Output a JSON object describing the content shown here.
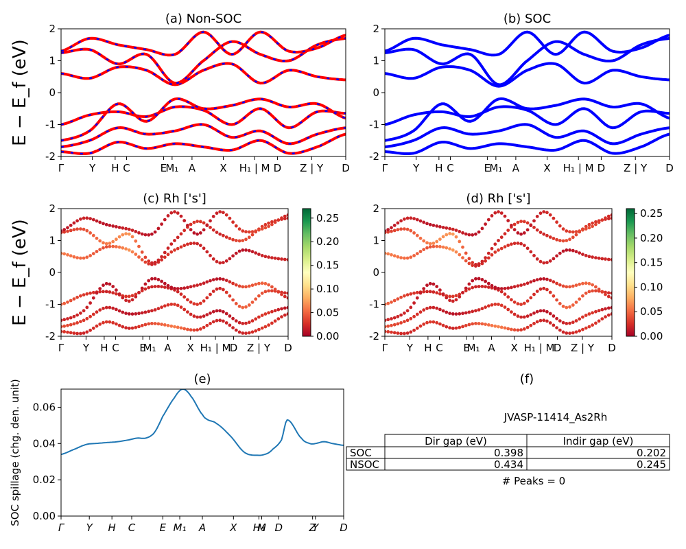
{
  "kpath": {
    "labels": [
      "Γ",
      "Y",
      "H",
      "C",
      "E",
      "M₁",
      "A",
      "X",
      "H₁ | M",
      "D",
      "Z | Y",
      "D"
    ],
    "spillage_labels": [
      "Γ",
      "Y",
      "H",
      "C",
      "E",
      "M₁",
      "A",
      "X",
      "H₁",
      "M",
      "D",
      "Z",
      "Y",
      "D"
    ]
  },
  "colors": {
    "nonsoc_solid": "#ff0000",
    "nonsoc_dash": "#0000ff",
    "soc": "#0000ff",
    "spillage": "#1f77b4",
    "colormap": [
      "#a50026",
      "#d73027",
      "#f46d43",
      "#fdae61",
      "#fee08b",
      "#ffffbf",
      "#d9ef8b",
      "#a6d96a",
      "#66bd63",
      "#1a9850",
      "#006837"
    ]
  },
  "chart_data": [
    {
      "panel": "a",
      "type": "line",
      "title": "(a) Non-SOC",
      "ylabel": "E − E_f (eV)",
      "ylim": [
        -2,
        2
      ],
      "yticks": [
        -2,
        -1,
        0,
        1,
        2
      ],
      "style": "red solid overlaid with blue dashes",
      "bands": [
        {
          "x": [
            0,
            0.1,
            0.2,
            0.3,
            0.4,
            0.5,
            0.6,
            0.7,
            0.8,
            0.9,
            1
          ],
          "y": [
            -1.0,
            -0.7,
            -0.6,
            -0.75,
            -0.45,
            -0.55,
            -1.0,
            -0.5,
            -1.1,
            -0.6,
            -0.65
          ]
        },
        {
          "x": [
            0,
            0.1,
            0.2,
            0.3,
            0.4,
            0.5,
            0.6,
            0.7,
            0.8,
            0.9,
            1
          ],
          "y": [
            -1.5,
            -1.2,
            -0.35,
            -0.9,
            -0.2,
            -0.5,
            -0.4,
            -0.2,
            -0.45,
            -0.35,
            -0.8
          ]
        },
        {
          "x": [
            0,
            0.1,
            0.2,
            0.3,
            0.4,
            0.5,
            0.6,
            0.7,
            0.8,
            0.9,
            1
          ],
          "y": [
            -1.7,
            -1.5,
            -1.1,
            -1.3,
            -1.2,
            -1.0,
            -1.4,
            -1.2,
            -1.6,
            -1.3,
            -1.1
          ]
        },
        {
          "x": [
            0,
            0.1,
            0.2,
            0.3,
            0.4,
            0.5,
            0.6,
            0.7,
            0.8,
            0.9,
            1
          ],
          "y": [
            -1.85,
            -1.9,
            -1.55,
            -1.75,
            -1.6,
            -1.7,
            -1.8,
            -1.5,
            -1.9,
            -1.7,
            -1.3
          ]
        },
        {
          "x": [
            0,
            0.1,
            0.2,
            0.3,
            0.4,
            0.5,
            0.6,
            0.7,
            0.8,
            0.9,
            1
          ],
          "y": [
            0.6,
            0.45,
            0.8,
            0.7,
            0.25,
            0.7,
            0.9,
            0.3,
            0.7,
            0.5,
            0.4
          ]
        },
        {
          "x": [
            0,
            0.1,
            0.2,
            0.3,
            0.4,
            0.5,
            0.6,
            0.7,
            0.8,
            0.9,
            1
          ],
          "y": [
            1.25,
            1.35,
            0.9,
            1.2,
            0.3,
            1.0,
            1.6,
            1.2,
            1.0,
            1.5,
            1.7
          ]
        },
        {
          "x": [
            0,
            0.1,
            0.2,
            0.3,
            0.4,
            0.5,
            0.6,
            0.7,
            0.8,
            0.9,
            1
          ],
          "y": [
            1.3,
            1.7,
            1.5,
            1.35,
            1.2,
            1.9,
            1.2,
            1.9,
            1.3,
            1.4,
            1.8
          ]
        }
      ]
    },
    {
      "panel": "b",
      "type": "line",
      "title": "(b) SOC",
      "ylim": [
        -2,
        2
      ],
      "yticks": [
        -2,
        -1,
        0,
        1,
        2
      ],
      "style": "blue solid",
      "bands": [
        {
          "x": [
            0,
            0.1,
            0.2,
            0.3,
            0.4,
            0.5,
            0.6,
            0.7,
            0.8,
            0.9,
            1
          ],
          "y": [
            -1.0,
            -0.7,
            -0.6,
            -0.75,
            -0.45,
            -0.55,
            -1.0,
            -0.5,
            -1.1,
            -0.6,
            -0.65
          ]
        },
        {
          "x": [
            0,
            0.1,
            0.2,
            0.3,
            0.4,
            0.5,
            0.6,
            0.7,
            0.8,
            0.9,
            1
          ],
          "y": [
            -1.5,
            -1.2,
            -0.35,
            -0.9,
            -0.2,
            -0.5,
            -0.4,
            -0.2,
            -0.45,
            -0.35,
            -0.8
          ]
        },
        {
          "x": [
            0,
            0.1,
            0.2,
            0.3,
            0.4,
            0.5,
            0.6,
            0.7,
            0.8,
            0.9,
            1
          ],
          "y": [
            -1.7,
            -1.5,
            -1.1,
            -1.3,
            -1.2,
            -1.0,
            -1.4,
            -1.2,
            -1.6,
            -1.3,
            -1.1
          ]
        },
        {
          "x": [
            0,
            0.1,
            0.2,
            0.3,
            0.4,
            0.5,
            0.6,
            0.7,
            0.8,
            0.9,
            1
          ],
          "y": [
            -1.85,
            -1.9,
            -1.55,
            -1.75,
            -1.6,
            -1.7,
            -1.8,
            -1.5,
            -1.9,
            -1.7,
            -1.3
          ]
        },
        {
          "x": [
            0,
            0.1,
            0.2,
            0.3,
            0.4,
            0.5,
            0.6,
            0.7,
            0.8,
            0.9,
            1
          ],
          "y": [
            0.6,
            0.45,
            0.8,
            0.7,
            0.2,
            0.7,
            0.9,
            0.3,
            0.7,
            0.5,
            0.4
          ]
        },
        {
          "x": [
            0,
            0.1,
            0.2,
            0.3,
            0.4,
            0.5,
            0.6,
            0.7,
            0.8,
            0.9,
            1
          ],
          "y": [
            1.25,
            1.35,
            0.9,
            1.2,
            0.25,
            1.0,
            1.6,
            1.2,
            1.0,
            1.5,
            1.7
          ]
        },
        {
          "x": [
            0,
            0.1,
            0.2,
            0.3,
            0.4,
            0.5,
            0.6,
            0.7,
            0.8,
            0.9,
            1
          ],
          "y": [
            1.3,
            1.7,
            1.5,
            1.35,
            1.2,
            1.9,
            1.2,
            1.9,
            1.3,
            1.4,
            1.8
          ]
        }
      ]
    },
    {
      "panel": "c",
      "type": "scatter",
      "title": "(c)  Rh ['s']",
      "ylabel": "E − E_f (eV)",
      "ylim": [
        -2,
        2
      ],
      "yticks": [
        -2,
        -1,
        0,
        1,
        2
      ],
      "colorbar": {
        "min": 0.0,
        "max": 0.27,
        "ticks": [
          "0.00",
          "0.05",
          "0.10",
          "0.15",
          "0.20",
          "0.25"
        ]
      },
      "bands": [
        {
          "x": [
            0,
            0.1,
            0.2,
            0.3,
            0.4,
            0.5,
            0.6,
            0.7,
            0.8,
            0.9,
            1
          ],
          "y": [
            -1.0,
            -0.7,
            -0.6,
            -0.75,
            -0.45,
            -0.55,
            -1.0,
            -0.5,
            -1.1,
            -0.6,
            -0.65
          ],
          "w": [
            0.05,
            0.03,
            0.02,
            0.03,
            0.02,
            0.02,
            0.03,
            0.02,
            0.05,
            0.04,
            0.02
          ]
        },
        {
          "x": [
            0,
            0.1,
            0.2,
            0.3,
            0.4,
            0.5,
            0.6,
            0.7,
            0.8,
            0.9,
            1
          ],
          "y": [
            -1.5,
            -1.2,
            -0.35,
            -0.9,
            -0.2,
            -0.5,
            -0.4,
            -0.2,
            -0.45,
            -0.35,
            -0.8
          ],
          "w": [
            0.02,
            0.02,
            0.01,
            0.02,
            0.01,
            0.01,
            0.02,
            0.01,
            0.04,
            0.05,
            0.02
          ]
        },
        {
          "x": [
            0,
            0.1,
            0.2,
            0.3,
            0.4,
            0.5,
            0.6,
            0.7,
            0.8,
            0.9,
            1
          ],
          "y": [
            -1.7,
            -1.5,
            -1.1,
            -1.3,
            -1.2,
            -1.0,
            -1.4,
            -1.2,
            -1.6,
            -1.3,
            -1.1
          ],
          "w": [
            0.04,
            0.03,
            0.02,
            0.01,
            0.02,
            0.03,
            0.02,
            0.01,
            0.02,
            0.03,
            0.01
          ]
        },
        {
          "x": [
            0,
            0.1,
            0.2,
            0.3,
            0.4,
            0.5,
            0.6,
            0.7,
            0.8,
            0.9,
            1
          ],
          "y": [
            -1.85,
            -1.9,
            -1.55,
            -1.75,
            -1.6,
            -1.7,
            -1.8,
            -1.5,
            -1.9,
            -1.7,
            -1.3
          ],
          "w": [
            0.03,
            0.02,
            0.03,
            0.02,
            0.04,
            0.06,
            0.03,
            0.02,
            0.02,
            0.03,
            0.02
          ]
        },
        {
          "x": [
            0,
            0.1,
            0.2,
            0.3,
            0.4,
            0.5,
            0.6,
            0.7,
            0.8,
            0.9,
            1
          ],
          "y": [
            0.6,
            0.45,
            0.8,
            0.7,
            0.25,
            0.7,
            0.9,
            0.3,
            0.7,
            0.5,
            0.4
          ],
          "w": [
            0.06,
            0.05,
            0.04,
            0.07,
            0.02,
            0.03,
            0.02,
            0.02,
            0.01,
            0.02,
            0.02
          ]
        },
        {
          "x": [
            0,
            0.1,
            0.2,
            0.3,
            0.4,
            0.5,
            0.6,
            0.7,
            0.8,
            0.9,
            1
          ],
          "y": [
            1.25,
            1.35,
            0.9,
            1.2,
            0.3,
            1.0,
            1.6,
            1.2,
            1.0,
            1.5,
            1.7
          ],
          "w": [
            0.03,
            0.04,
            0.06,
            0.07,
            0.02,
            0.02,
            0.03,
            0.02,
            0.04,
            0.03,
            0.02
          ]
        },
        {
          "x": [
            0,
            0.1,
            0.2,
            0.3,
            0.4,
            0.5,
            0.6,
            0.7,
            0.8,
            0.9,
            1
          ],
          "y": [
            1.3,
            1.7,
            1.5,
            1.35,
            1.2,
            1.9,
            1.2,
            1.9,
            1.3,
            1.4,
            1.8
          ],
          "w": [
            0.01,
            0.02,
            0.01,
            0.02,
            0.01,
            0.02,
            0.01,
            0.02,
            0.03,
            0.04,
            0.02
          ]
        }
      ]
    },
    {
      "panel": "d",
      "type": "scatter",
      "title": "(d) Rh ['s']",
      "ylim": [
        -2,
        2
      ],
      "yticks": [
        -2,
        -1,
        0,
        1,
        2
      ],
      "colorbar": {
        "min": 0.0,
        "max": 0.26,
        "ticks": [
          "0.00",
          "0.05",
          "0.10",
          "0.15",
          "0.20",
          "0.25"
        ]
      },
      "bands": [
        {
          "x": [
            0,
            0.1,
            0.2,
            0.3,
            0.4,
            0.5,
            0.6,
            0.7,
            0.8,
            0.9,
            1
          ],
          "y": [
            -1.0,
            -0.7,
            -0.6,
            -0.75,
            -0.45,
            -0.55,
            -1.0,
            -0.5,
            -1.1,
            -0.6,
            -0.65
          ],
          "w": [
            0.05,
            0.03,
            0.02,
            0.03,
            0.02,
            0.02,
            0.03,
            0.02,
            0.05,
            0.04,
            0.02
          ]
        },
        {
          "x": [
            0,
            0.1,
            0.2,
            0.3,
            0.4,
            0.5,
            0.6,
            0.7,
            0.8,
            0.9,
            1
          ],
          "y": [
            -1.5,
            -1.2,
            -0.35,
            -0.9,
            -0.2,
            -0.5,
            -0.4,
            -0.2,
            -0.45,
            -0.35,
            -0.8
          ],
          "w": [
            0.02,
            0.02,
            0.01,
            0.02,
            0.01,
            0.01,
            0.02,
            0.01,
            0.04,
            0.05,
            0.02
          ]
        },
        {
          "x": [
            0,
            0.1,
            0.2,
            0.3,
            0.4,
            0.5,
            0.6,
            0.7,
            0.8,
            0.9,
            1
          ],
          "y": [
            -1.7,
            -1.5,
            -1.1,
            -1.3,
            -1.2,
            -1.0,
            -1.4,
            -1.2,
            -1.6,
            -1.3,
            -1.1
          ],
          "w": [
            0.04,
            0.03,
            0.02,
            0.01,
            0.02,
            0.03,
            0.02,
            0.01,
            0.02,
            0.03,
            0.01
          ]
        },
        {
          "x": [
            0,
            0.1,
            0.2,
            0.3,
            0.4,
            0.5,
            0.6,
            0.7,
            0.8,
            0.9,
            1
          ],
          "y": [
            -1.85,
            -1.9,
            -1.55,
            -1.75,
            -1.6,
            -1.7,
            -1.8,
            -1.5,
            -1.9,
            -1.7,
            -1.3
          ],
          "w": [
            0.03,
            0.02,
            0.03,
            0.02,
            0.04,
            0.06,
            0.03,
            0.02,
            0.02,
            0.03,
            0.02
          ]
        },
        {
          "x": [
            0,
            0.1,
            0.2,
            0.3,
            0.4,
            0.5,
            0.6,
            0.7,
            0.8,
            0.9,
            1
          ],
          "y": [
            0.6,
            0.45,
            0.8,
            0.7,
            0.2,
            0.7,
            0.9,
            0.3,
            0.7,
            0.5,
            0.4
          ],
          "w": [
            0.06,
            0.05,
            0.04,
            0.07,
            0.02,
            0.03,
            0.02,
            0.02,
            0.01,
            0.02,
            0.02
          ]
        },
        {
          "x": [
            0,
            0.1,
            0.2,
            0.3,
            0.4,
            0.5,
            0.6,
            0.7,
            0.8,
            0.9,
            1
          ],
          "y": [
            1.25,
            1.35,
            0.9,
            1.2,
            0.25,
            1.0,
            1.6,
            1.2,
            1.0,
            1.5,
            1.7
          ],
          "w": [
            0.03,
            0.04,
            0.06,
            0.07,
            0.02,
            0.02,
            0.03,
            0.02,
            0.04,
            0.03,
            0.02
          ]
        },
        {
          "x": [
            0,
            0.1,
            0.2,
            0.3,
            0.4,
            0.5,
            0.6,
            0.7,
            0.8,
            0.9,
            1
          ],
          "y": [
            1.3,
            1.7,
            1.5,
            1.35,
            1.2,
            1.9,
            1.2,
            1.9,
            1.3,
            1.4,
            1.8
          ],
          "w": [
            0.01,
            0.02,
            0.01,
            0.02,
            0.01,
            0.02,
            0.01,
            0.02,
            0.03,
            0.04,
            0.02
          ]
        }
      ]
    },
    {
      "panel": "e",
      "type": "line",
      "title": "(e)",
      "ylabel": "SOC spillage (chg. den. unit)",
      "ylim": [
        0.0,
        0.07
      ],
      "yticks": [
        "0.00",
        "0.02",
        "0.04",
        "0.06"
      ],
      "x": [
        0,
        0.05,
        0.09,
        0.12,
        0.16,
        0.2,
        0.24,
        0.27,
        0.3,
        0.33,
        0.36,
        0.4,
        0.43,
        0.46,
        0.5,
        0.52,
        0.55,
        0.6,
        0.65,
        0.7,
        0.73,
        0.75,
        0.78,
        0.8,
        0.85,
        0.88,
        0.9,
        0.93,
        0.96,
        1
      ],
      "y": [
        0.034,
        0.037,
        0.0395,
        0.04,
        0.0405,
        0.041,
        0.042,
        0.043,
        0.043,
        0.046,
        0.055,
        0.065,
        0.07,
        0.066,
        0.056,
        0.053,
        0.051,
        0.044,
        0.035,
        0.0335,
        0.0345,
        0.037,
        0.042,
        0.053,
        0.043,
        0.04,
        0.04,
        0.041,
        0.04,
        0.039
      ]
    }
  ],
  "panel_f": {
    "title": "(f)",
    "material": "JVASP-11414_As2Rh",
    "columns": [
      "Dir gap (eV)",
      "Indir gap (eV)"
    ],
    "rows": [
      {
        "label": "SOC",
        "dir": "0.398",
        "indir": "0.202"
      },
      {
        "label": "NSOC",
        "dir": "0.434",
        "indir": "0.245"
      }
    ],
    "peaks": "# Peaks = 0"
  }
}
